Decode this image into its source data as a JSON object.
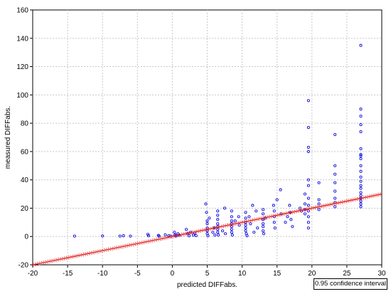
{
  "chart_data": {
    "type": "scatter",
    "xlabel": "predicted DIFFabs.",
    "ylabel": "measured DIFFabs.",
    "xlim": [
      -20,
      30
    ],
    "ylim": [
      -20,
      160
    ],
    "x_ticks": [
      -20,
      -15,
      -10,
      -5,
      0,
      5,
      10,
      15,
      20,
      25,
      30
    ],
    "y_ticks": [
      -20,
      0,
      20,
      40,
      60,
      80,
      100,
      120,
      140,
      160
    ],
    "grid": true,
    "legend": "0.95 confidence interval",
    "legend_position": "bottom-right",
    "colors": {
      "points": "#1010e0",
      "fit": "#e01010"
    },
    "fit_line": {
      "x": [
        -20,
        30
      ],
      "y": [
        -20,
        30
      ]
    },
    "series": [
      {
        "marker": "open-circle",
        "points": [
          [
            -14,
            0.3
          ],
          [
            -10,
            0.4
          ],
          [
            -7.5,
            0.3
          ],
          [
            -7,
            0.5
          ],
          [
            -6,
            0.3
          ],
          [
            -3.5,
            1.5
          ],
          [
            -3.4,
            0.5
          ],
          [
            -2,
            0.8
          ],
          [
            -1.9,
            0.3
          ],
          [
            -1,
            1.2
          ],
          [
            -0.5,
            0.6
          ],
          [
            -0.2,
            0.3
          ],
          [
            0.3,
            3
          ],
          [
            0.4,
            1
          ],
          [
            0.5,
            0.3
          ],
          [
            0.8,
            2
          ],
          [
            1,
            0.8
          ],
          [
            2,
            5
          ],
          [
            2.2,
            2
          ],
          [
            2.4,
            0.5
          ],
          [
            2.6,
            3
          ],
          [
            3,
            1
          ],
          [
            3.2,
            2.5
          ],
          [
            3.4,
            0.6
          ],
          [
            4.8,
            23
          ],
          [
            4.9,
            17
          ],
          [
            5,
            11
          ],
          [
            5,
            9
          ],
          [
            5,
            6
          ],
          [
            5,
            4
          ],
          [
            5,
            2
          ],
          [
            5.1,
            0.5
          ],
          [
            5.3,
            13
          ],
          [
            5.8,
            3
          ],
          [
            6,
            6
          ],
          [
            6.1,
            1
          ],
          [
            6.5,
            18
          ],
          [
            6.5,
            15
          ],
          [
            6.5,
            12
          ],
          [
            6.5,
            9
          ],
          [
            6.5,
            7
          ],
          [
            6.5,
            5
          ],
          [
            6.5,
            3
          ],
          [
            6.6,
            1
          ],
          [
            7.2,
            4
          ],
          [
            7.5,
            20
          ],
          [
            7.6,
            2
          ],
          [
            8.5,
            18
          ],
          [
            8.5,
            14
          ],
          [
            8.5,
            11
          ],
          [
            8.5,
            9
          ],
          [
            8.5,
            7
          ],
          [
            8.5,
            5
          ],
          [
            8.5,
            3
          ],
          [
            8.6,
            1
          ],
          [
            9,
            11
          ],
          [
            9.5,
            14
          ],
          [
            9.6,
            8
          ],
          [
            10.5,
            17
          ],
          [
            10.5,
            13
          ],
          [
            10.5,
            10
          ],
          [
            10.5,
            8
          ],
          [
            10.5,
            6
          ],
          [
            10.5,
            4
          ],
          [
            10.6,
            2
          ],
          [
            10.7,
            0.5
          ],
          [
            11,
            14
          ],
          [
            11.2,
            9
          ],
          [
            11.5,
            22
          ],
          [
            11.7,
            3
          ],
          [
            12,
            18
          ],
          [
            12.2,
            6
          ],
          [
            13,
            19
          ],
          [
            13,
            16
          ],
          [
            13,
            12
          ],
          [
            13,
            9
          ],
          [
            13,
            7
          ],
          [
            13,
            4
          ],
          [
            13.1,
            2
          ],
          [
            13.3,
            13
          ],
          [
            14.5,
            22
          ],
          [
            14.6,
            18
          ],
          [
            14.6,
            14
          ],
          [
            14.6,
            10
          ],
          [
            14.7,
            6
          ],
          [
            15,
            26
          ],
          [
            15.5,
            33
          ],
          [
            15.6,
            16
          ],
          [
            16.2,
            10
          ],
          [
            16.5,
            14
          ],
          [
            16.8,
            22
          ],
          [
            16.9,
            17
          ],
          [
            17,
            12
          ],
          [
            17.2,
            7
          ],
          [
            18.3,
            20
          ],
          [
            18.5,
            18
          ],
          [
            19,
            30
          ],
          [
            19,
            23
          ],
          [
            19,
            19
          ],
          [
            19,
            16
          ],
          [
            19.5,
            96
          ],
          [
            19.5,
            77
          ],
          [
            19.5,
            63
          ],
          [
            19.5,
            60
          ],
          [
            19.5,
            40
          ],
          [
            19.5,
            36
          ],
          [
            19.5,
            27
          ],
          [
            19.5,
            22
          ],
          [
            19.5,
            18
          ],
          [
            19.5,
            14
          ],
          [
            19.5,
            10
          ],
          [
            19.5,
            6
          ],
          [
            21,
            38
          ],
          [
            21,
            26
          ],
          [
            21,
            23
          ],
          [
            21,
            19
          ],
          [
            23.3,
            72
          ],
          [
            23.3,
            50
          ],
          [
            23.3,
            44
          ],
          [
            23.3,
            38
          ],
          [
            23.3,
            32
          ],
          [
            23.3,
            27
          ],
          [
            23.3,
            24
          ],
          [
            23.3,
            21
          ],
          [
            27,
            135
          ],
          [
            27,
            90
          ],
          [
            27,
            85
          ],
          [
            27,
            79
          ],
          [
            27,
            74
          ],
          [
            27,
            62
          ],
          [
            27,
            58
          ],
          [
            27,
            57
          ],
          [
            27,
            55
          ],
          [
            27,
            50
          ],
          [
            27,
            46
          ],
          [
            27,
            42
          ],
          [
            27,
            39
          ],
          [
            27,
            36
          ],
          [
            27,
            34
          ],
          [
            27,
            31
          ],
          [
            27,
            29
          ],
          [
            27,
            27
          ],
          [
            27,
            25
          ],
          [
            27,
            23
          ],
          [
            27,
            21
          ]
        ]
      }
    ]
  }
}
